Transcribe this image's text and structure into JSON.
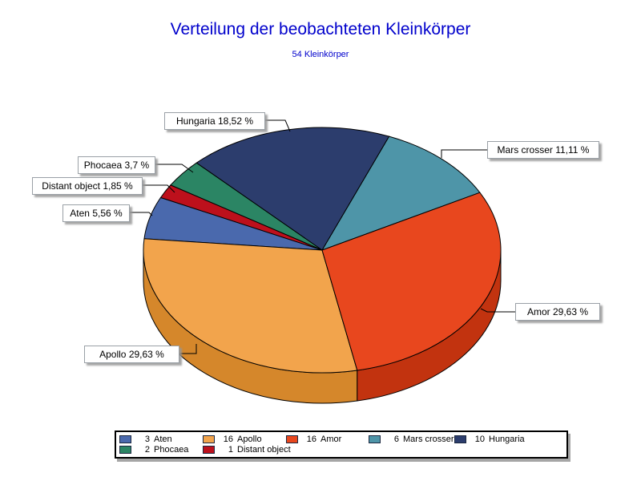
{
  "chart_data": {
    "type": "pie",
    "title": "Verteilung der beobachteten Kleinkörper",
    "subtitle": "54 Kleinkörper",
    "total_count": 54,
    "title_color": "#0000CC",
    "background_color": "#FFFFFF",
    "legend_position": "bottom",
    "start_angle_deg": 28,
    "slices": [
      {
        "id": "mars_crosser",
        "name": "Mars crosser",
        "count": 6,
        "pct": 11.11,
        "callout": "Mars crosser 11,11 %",
        "color": "#4E95A8",
        "side_color": "#3D7787"
      },
      {
        "id": "hungaria",
        "name": "Hungaria",
        "count": 10,
        "pct": 18.52,
        "callout": "Hungaria 18,52 %",
        "color": "#2C3D6D",
        "side_color": "#1F2C50"
      },
      {
        "id": "phocaea",
        "name": "Phocaea",
        "count": 2,
        "pct": 3.7,
        "callout": "Phocaea 3,7 %",
        "color": "#2B8564",
        "side_color": "#1D6148"
      },
      {
        "id": "distant_object",
        "name": "Distant object",
        "count": 1,
        "pct": 1.85,
        "callout": "Distant object 1,85 %",
        "color": "#BD101C",
        "side_color": "#8E0C15"
      },
      {
        "id": "aten",
        "name": "Aten",
        "count": 3,
        "pct": 5.56,
        "callout": "Aten 5,56 %",
        "color": "#4A69AD",
        "side_color": "#374F85"
      },
      {
        "id": "apollo",
        "name": "Apollo",
        "count": 16,
        "pct": 29.63,
        "callout": "Apollo 29,63 %",
        "color": "#F2A44C",
        "side_color": "#D5872B"
      },
      {
        "id": "amor",
        "name": "Amor",
        "count": 16,
        "pct": 29.63,
        "callout": "Amor 29,63 %",
        "color": "#E8471E",
        "side_color": "#C2330F"
      }
    ],
    "legend": {
      "rows": [
        [
          "aten",
          "apollo",
          "amor",
          "mars_crosser",
          "hungaria"
        ],
        [
          "phocaea",
          "distant_object"
        ]
      ]
    }
  }
}
